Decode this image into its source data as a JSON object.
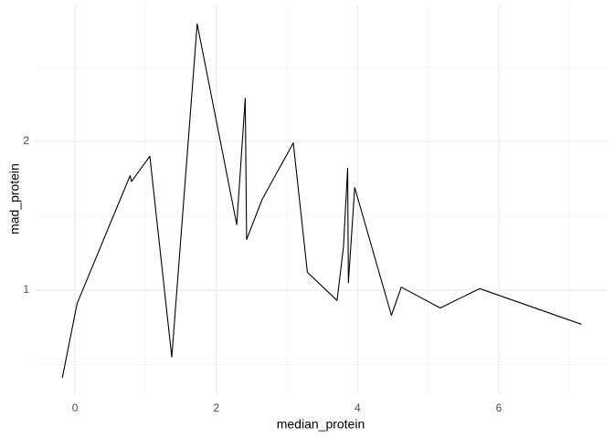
{
  "chart_data": {
    "type": "line",
    "x_label": "median_protein",
    "y_label": "mad_protein",
    "series": [
      {
        "color": "#000000",
        "x": [
          -0.18,
          0.03,
          0.78,
          0.8,
          1.06,
          1.37,
          1.73,
          2.1,
          2.29,
          2.41,
          2.43,
          2.65,
          3.09,
          3.29,
          3.71,
          3.8,
          3.86,
          3.87,
          3.96,
          4.48,
          4.62,
          5.17,
          5.73,
          7.17
        ],
        "values": [
          0.41,
          0.91,
          1.77,
          1.73,
          1.9,
          0.55,
          2.79,
          1.9,
          1.44,
          2.29,
          1.34,
          1.61,
          1.99,
          1.12,
          0.93,
          1.29,
          1.82,
          1.05,
          1.69,
          0.83,
          1.02,
          0.88,
          1.01,
          0.77
        ]
      }
    ],
    "xlim": [
      -0.57,
      7.54
    ],
    "xticks": [
      0,
      2,
      4,
      6
    ],
    "ylim": [
      0.3,
      2.92
    ],
    "yticks": [
      1,
      2
    ],
    "grid": true
  }
}
